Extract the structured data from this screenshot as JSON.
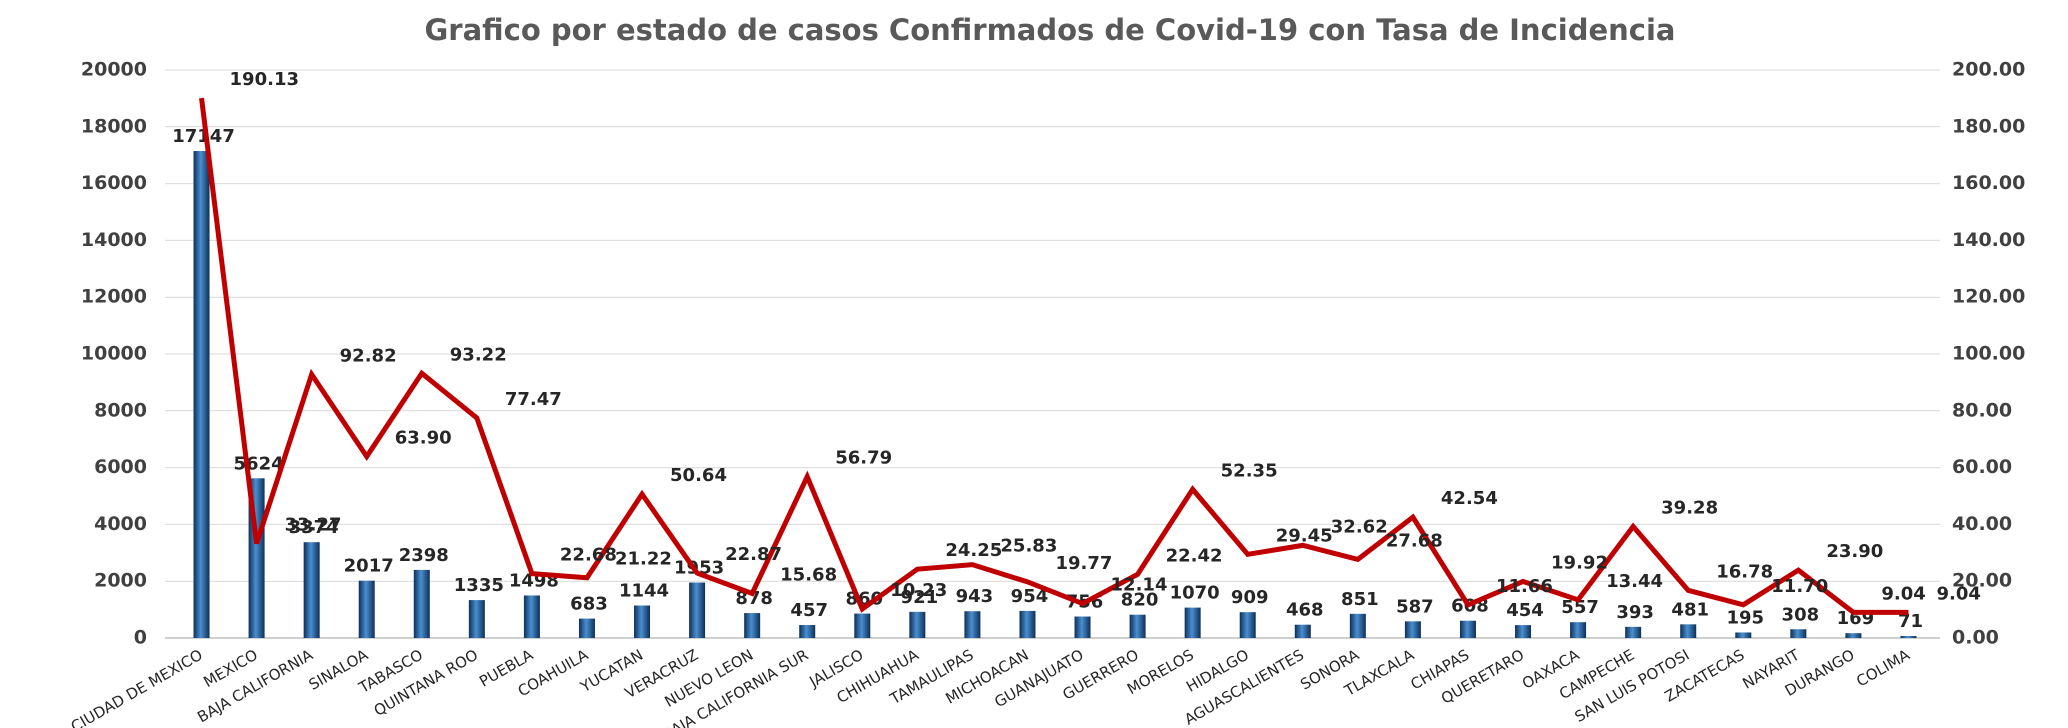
{
  "chart_data": {
    "type": "bar_line",
    "title": "Grafico por estado de casos Confirmados de Covid-19 con Tasa de Incidencia",
    "categories": [
      "CIUDAD DE MEXICO",
      "MEXICO",
      "BAJA CALIFORNIA",
      "SINALOA",
      "TABASCO",
      "QUINTANA ROO",
      "PUEBLA",
      "COAHUILA",
      "YUCATAN",
      "VERACRUZ",
      "NUEVO LEON",
      "BAJA CALIFORNIA SUR",
      "JALISCO",
      "CHIHUAHUA",
      "TAMAULIPAS",
      "MICHOACAN",
      "GUANAJUATO",
      "GUERRERO",
      "MORELOS",
      "HIDALGO",
      "AGUASCALIENTES",
      "SONORA",
      "TLAXCALA",
      "CHIAPAS",
      "QUERETARO",
      "OAXACA",
      "CAMPECHE",
      "SAN LUIS POTOSI",
      "ZACATECAS",
      "NAYARIT",
      "DURANGO",
      "COLIMA"
    ],
    "series": [
      {
        "type": "bar",
        "color": "#1f5fa0",
        "values": [
          17147,
          5624,
          3374,
          2017,
          2398,
          1335,
          1498,
          683,
          1144,
          1953,
          878,
          457,
          860,
          921,
          943,
          954,
          756,
          820,
          1070,
          909,
          468,
          851,
          587,
          608,
          454,
          557,
          393,
          481,
          195,
          308,
          169,
          71
        ]
      },
      {
        "type": "line",
        "axis": "y2",
        "color": "#c00000",
        "values": [
          190.13,
          33.27,
          92.82,
          63.9,
          93.22,
          77.47,
          22.68,
          21.22,
          50.64,
          22.87,
          15.68,
          56.79,
          10.23,
          24.25,
          25.83,
          19.77,
          12.14,
          22.42,
          52.35,
          29.45,
          32.62,
          27.68,
          42.54,
          11.66,
          19.92,
          13.44,
          39.28,
          16.78,
          11.7,
          23.9,
          9.04,
          9.04
        ],
        "value_labels": [
          "190.13",
          "33.27",
          "92.82",
          "63.90",
          "93.22",
          "77.47",
          "22.68",
          "21.22",
          "50.64",
          "22.87",
          "15.68",
          "56.79",
          "10.23",
          "24.25",
          "25.83",
          "19.77",
          "12.14",
          "22.42",
          "52.35",
          "29.45",
          "32.62",
          "27.68",
          "42.54",
          "11.66",
          "19.92",
          "13.44",
          "39.28",
          "16.78",
          "11.70",
          "23.90",
          "9.04",
          "9.04"
        ]
      }
    ],
    "ylim": [
      0,
      20000
    ],
    "yticks": [
      0,
      2000,
      4000,
      6000,
      8000,
      10000,
      12000,
      14000,
      16000,
      18000,
      20000
    ],
    "y2lim": [
      0,
      200
    ],
    "y2ticks": [
      {
        "value": 0,
        "label": "0.00"
      },
      {
        "value": 20,
        "label": "20.00"
      },
      {
        "value": 40,
        "label": "40.00"
      },
      {
        "value": 60,
        "label": "60.00"
      },
      {
        "value": 80,
        "label": "80.00"
      },
      {
        "value": 100,
        "label": "100.00"
      },
      {
        "value": 120,
        "label": "120.00"
      },
      {
        "value": 140,
        "label": "140.00"
      },
      {
        "value": 160,
        "label": "160.00"
      },
      {
        "value": 180,
        "label": "180.00"
      },
      {
        "value": 200,
        "label": "200.00"
      }
    ],
    "grid": true
  }
}
